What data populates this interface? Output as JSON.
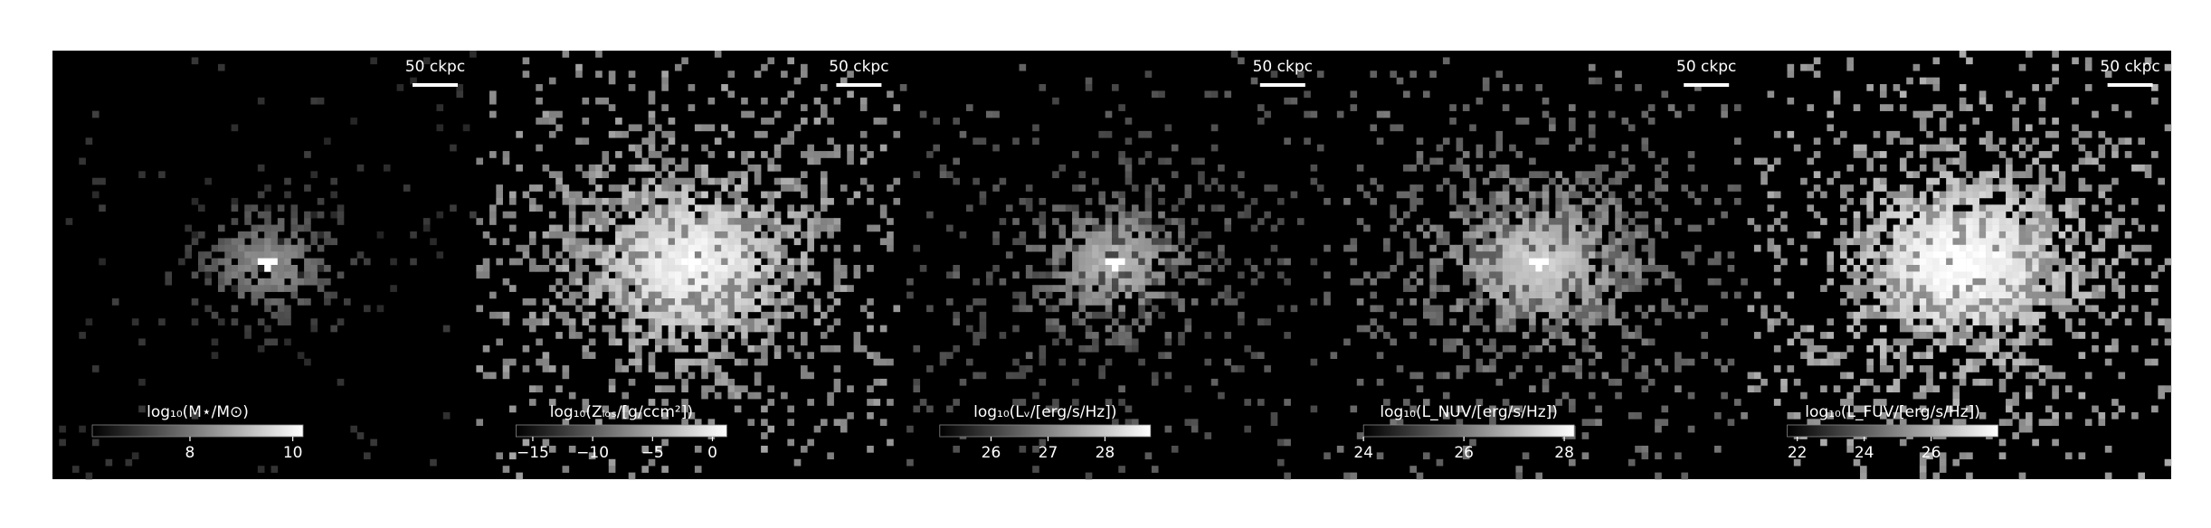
{
  "chart_data": [
    {
      "type": "image",
      "scale_bar_label": "50 ckpc",
      "colorbar": {
        "label": "log₁₀(M⋆/M⊙)",
        "lim": [
          6.1,
          10.2
        ],
        "ticks": [
          8,
          10
        ]
      }
    },
    {
      "type": "image",
      "scale_bar_label": "50 ckpc",
      "colorbar": {
        "label": "log₁₀(Zₗₒₛ/[g/ccm²])",
        "lim": [
          -16.4,
          1.2
        ],
        "ticks": [
          {
            "value": -15,
            "label": "−15"
          },
          {
            "value": -10,
            "label": "−10"
          },
          {
            "value": -5,
            "label": "−5"
          },
          0
        ]
      }
    },
    {
      "type": "image",
      "scale_bar_label": "50 ckpc",
      "colorbar": {
        "label": "log₁₀(Lᵥ/[erg/s/Hz])",
        "lim": [
          25.1,
          28.8
        ],
        "ticks": [
          26,
          27,
          28
        ]
      }
    },
    {
      "type": "image",
      "scale_bar_label": "50 ckpc",
      "colorbar": {
        "label": "log₁₀(L_NUV/[erg/s/Hz])",
        "lim": [
          24,
          28.2
        ],
        "ticks": [
          24,
          26,
          28
        ]
      }
    },
    {
      "type": "image",
      "scale_bar_label": "50 ckpc",
      "colorbar": {
        "label": "log₁₀(L_FUV/[erg/s/Hz])",
        "lim": [
          21.7,
          28
        ],
        "ticks": [
          22,
          24,
          26
        ]
      }
    }
  ]
}
